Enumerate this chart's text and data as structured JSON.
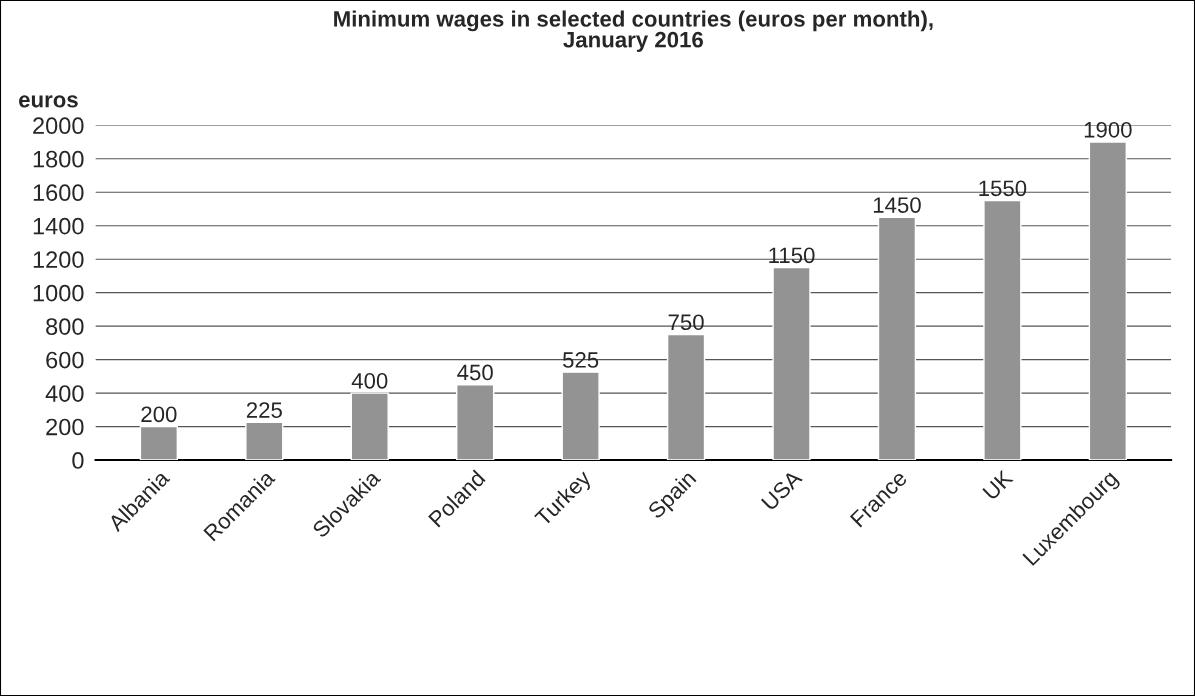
{
  "chart_data": {
    "type": "bar",
    "title": "Minimum wages in selected countries (euros per month),\nJanuary 2016",
    "ylabel": "euros",
    "categories": [
      "Albania",
      "Romania",
      "Slovakia",
      "Poland",
      "Turkey",
      "Spain",
      "USA",
      "France",
      "UK",
      "Luxembourg"
    ],
    "values": [
      200,
      225,
      400,
      450,
      525,
      750,
      1150,
      1450,
      1550,
      1900
    ],
    "color": "#939393",
    "ylim": [
      0,
      2000
    ],
    "yticks": [
      0,
      200,
      400,
      600,
      800,
      1000,
      1200,
      1400,
      1600,
      1800,
      2000
    ],
    "grid": "y",
    "data_labels": true
  }
}
